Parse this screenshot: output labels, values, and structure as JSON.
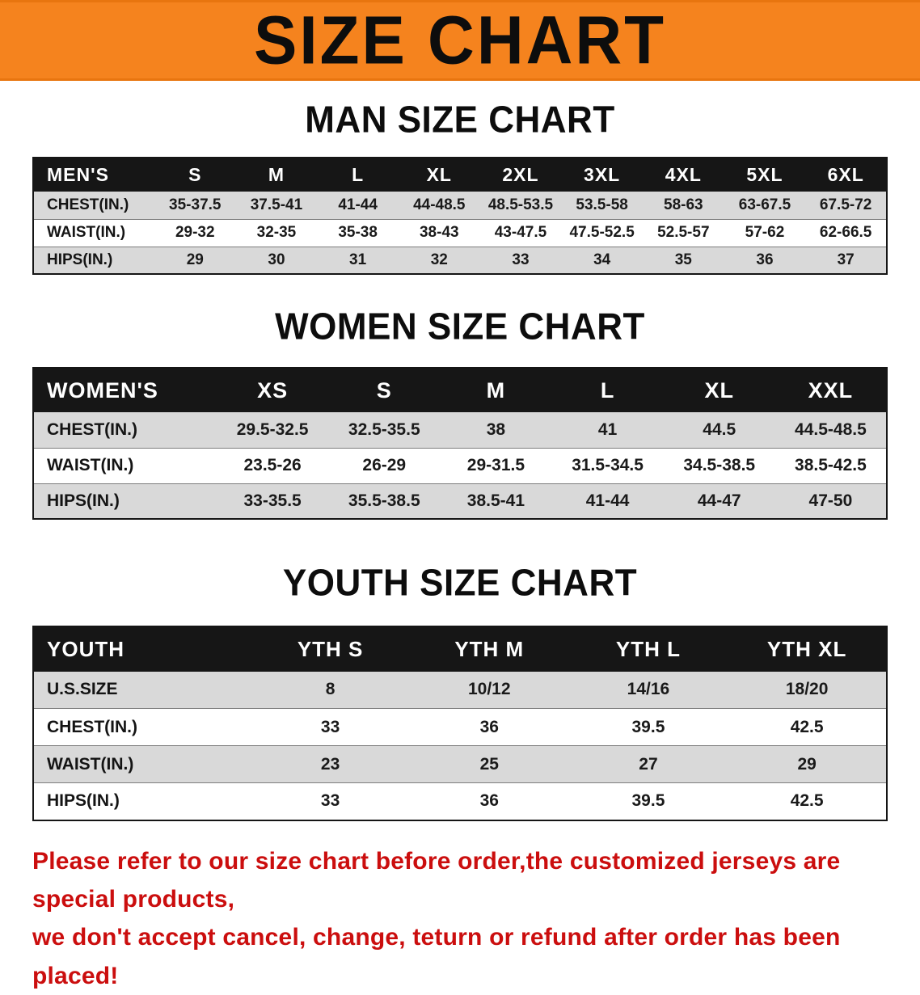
{
  "banner": {
    "title": "SIZE CHART"
  },
  "colors": {
    "banner_orange": "#f5831e",
    "table_header_black": "#161616",
    "row_stripe_gray": "#d9d9d9",
    "notice_red": "#cb0e0e"
  },
  "sections": {
    "men": {
      "heading": "MAN SIZE CHART",
      "table": {
        "headers": [
          "MEN'S",
          "S",
          "M",
          "L",
          "XL",
          "2XL",
          "3XL",
          "4XL",
          "5XL",
          "6XL"
        ],
        "rows": [
          {
            "label": "CHEST(IN.)",
            "values": [
              "35-37.5",
              "37.5-41",
              "41-44",
              "44-48.5",
              "48.5-53.5",
              "53.5-58",
              "58-63",
              "63-67.5",
              "67.5-72"
            ]
          },
          {
            "label": "WAIST(IN.)",
            "values": [
              "29-32",
              "32-35",
              "35-38",
              "38-43",
              "43-47.5",
              "47.5-52.5",
              "52.5-57",
              "57-62",
              "62-66.5"
            ]
          },
          {
            "label": "HIPS(IN.)",
            "values": [
              "29",
              "30",
              "31",
              "32",
              "33",
              "34",
              "35",
              "36",
              "37"
            ]
          }
        ]
      }
    },
    "women": {
      "heading": "WOMEN SIZE CHART",
      "table": {
        "headers": [
          "WOMEN'S",
          "XS",
          "S",
          "M",
          "L",
          "XL",
          "XXL"
        ],
        "rows": [
          {
            "label": "CHEST(IN.)",
            "values": [
              "29.5-32.5",
              "32.5-35.5",
              "38",
              "41",
              "44.5",
              "44.5-48.5"
            ]
          },
          {
            "label": "WAIST(IN.)",
            "values": [
              "23.5-26",
              "26-29",
              "29-31.5",
              "31.5-34.5",
              "34.5-38.5",
              "38.5-42.5"
            ]
          },
          {
            "label": "HIPS(IN.)",
            "values": [
              "33-35.5",
              "35.5-38.5",
              "38.5-41",
              "41-44",
              "44-47",
              "47-50"
            ]
          }
        ]
      }
    },
    "youth": {
      "heading": "YOUTH SIZE CHART",
      "table": {
        "headers": [
          "YOUTH",
          "YTH S",
          "YTH M",
          "YTH L",
          "YTH XL"
        ],
        "rows": [
          {
            "label": "U.S.SIZE",
            "values": [
              "8",
              "10/12",
              "14/16",
              "18/20"
            ]
          },
          {
            "label": "CHEST(IN.)",
            "values": [
              "33",
              "36",
              "39.5",
              "42.5"
            ]
          },
          {
            "label": "WAIST(IN.)",
            "values": [
              "23",
              "25",
              "27",
              "29"
            ]
          },
          {
            "label": "HIPS(IN.)",
            "values": [
              "33",
              "36",
              "39.5",
              "42.5"
            ]
          }
        ]
      }
    }
  },
  "footer": {
    "line1": "Please refer to our size chart before order,the customized jerseys are special products,",
    "line2": "we don't accept cancel, change, teturn or refund after order has been placed!"
  }
}
